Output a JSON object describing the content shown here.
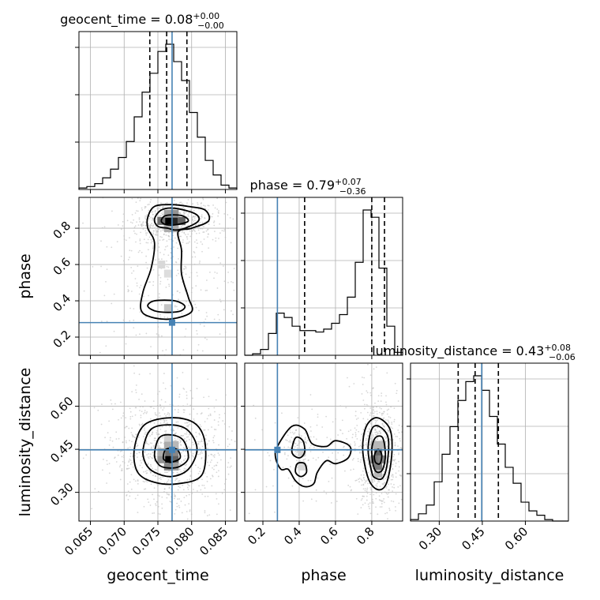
{
  "chart_data": {
    "type": "corner",
    "parameters": [
      "geocent_time",
      "phase",
      "luminosity_distance"
    ],
    "axis_ranges": {
      "geocent_time": [
        0.0633,
        0.0867
      ],
      "phase": [
        0.1,
        0.97
      ],
      "luminosity_distance": [
        0.2,
        0.75
      ]
    },
    "ticks": {
      "geocent_time": [
        "0.065",
        "0.070",
        "0.075",
        "0.080",
        "0.085"
      ],
      "phase_y": [
        "0.2",
        "0.4",
        "0.6",
        "0.8"
      ],
      "phase_x": [
        "0.2",
        "0.4",
        "0.6",
        "0.8"
      ],
      "luminosity_distance_y": [
        "0.30",
        "0.45",
        "0.60"
      ],
      "luminosity_distance_x": [
        "0.30",
        "0.45",
        "0.60"
      ]
    },
    "truths": {
      "geocent_time": 0.0771,
      "phase": 0.28,
      "luminosity_distance": 0.448
    },
    "titles": {
      "geocent_time": {
        "name": "geocent_time",
        "median": "0.08",
        "plus": "+0.00",
        "minus": "−0.00"
      },
      "phase": {
        "name": "phase",
        "median": "0.79",
        "plus": "+0.07",
        "minus": "−0.36"
      },
      "luminosity_distance": {
        "name": "luminosity_distance",
        "median": "0.43",
        "plus": "+0.08",
        "minus": "−0.06"
      }
    },
    "quantiles": {
      "geocent_time": [
        0.0738,
        0.0763,
        0.0793
      ],
      "phase": [
        0.43,
        0.8,
        0.87
      ],
      "luminosity_distance": [
        0.366,
        0.425,
        0.506
      ]
    },
    "histograms": {
      "geocent_time": {
        "edges": [
          0.0633,
          0.06447,
          0.06564,
          0.06681,
          0.06798,
          0.06915,
          0.07032,
          0.07149,
          0.07266,
          0.07383,
          0.075,
          0.07617,
          0.07734,
          0.07851,
          0.07968,
          0.08085,
          0.08202,
          0.08319,
          0.08436,
          0.08553,
          0.0867
        ],
        "counts": [
          0.01,
          0.02,
          0.04,
          0.08,
          0.14,
          0.22,
          0.33,
          0.5,
          0.67,
          0.8,
          0.95,
          1.0,
          0.88,
          0.75,
          0.53,
          0.36,
          0.2,
          0.1,
          0.03,
          0.01
        ]
      },
      "phase": {
        "edges": [
          0.1,
          0.1435,
          0.187,
          0.2305,
          0.274,
          0.3175,
          0.361,
          0.4045,
          0.448,
          0.4915,
          0.535,
          0.5785,
          0.622,
          0.6655,
          0.709,
          0.7525,
          0.796,
          0.8395,
          0.883,
          0.9265,
          0.97
        ],
        "counts": [
          0.0,
          0.01,
          0.04,
          0.15,
          0.29,
          0.26,
          0.2,
          0.17,
          0.17,
          0.16,
          0.18,
          0.22,
          0.28,
          0.4,
          0.64,
          1.0,
          0.95,
          0.6,
          0.2,
          0.02
        ]
      },
      "luminosity_distance": {
        "edges": [
          0.2,
          0.2275,
          0.255,
          0.2825,
          0.31,
          0.3375,
          0.365,
          0.3925,
          0.42,
          0.4475,
          0.475,
          0.5025,
          0.53,
          0.5575,
          0.585,
          0.6125,
          0.64,
          0.6675,
          0.695,
          0.7225,
          0.75
        ],
        "counts": [
          0.01,
          0.05,
          0.11,
          0.27,
          0.46,
          0.65,
          0.83,
          0.96,
          1.0,
          0.9,
          0.72,
          0.53,
          0.37,
          0.26,
          0.13,
          0.07,
          0.04,
          0.01,
          0.0,
          0.0
        ]
      }
    },
    "density_2d": {
      "phase_vs_geocent_time": {
        "contours": [
          [
            [
              0.0735,
              0.86
            ],
            [
              0.0745,
              0.92
            ],
            [
              0.077,
              0.93
            ],
            [
              0.0795,
              0.92
            ],
            [
              0.082,
              0.9
            ],
            [
              0.0825,
              0.84
            ],
            [
              0.08,
              0.8
            ],
            [
              0.078,
              0.78
            ],
            [
              0.0785,
              0.68
            ],
            [
              0.0785,
              0.55
            ],
            [
              0.0795,
              0.42
            ],
            [
              0.08,
              0.34
            ],
            [
              0.077,
              0.3
            ],
            [
              0.074,
              0.31
            ],
            [
              0.0725,
              0.35
            ],
            [
              0.0728,
              0.45
            ],
            [
              0.074,
              0.58
            ],
            [
              0.0745,
              0.72
            ],
            [
              0.0735,
              0.8
            ]
          ],
          [
            [
              0.0745,
              0.85
            ],
            [
              0.0755,
              0.9
            ],
            [
              0.0775,
              0.91
            ],
            [
              0.0805,
              0.88
            ],
            [
              0.081,
              0.84
            ],
            [
              0.079,
              0.8
            ],
            [
              0.0775,
              0.79
            ],
            [
              0.0765,
              0.8
            ],
            [
              0.075,
              0.81
            ]
          ],
          [
            [
              0.0735,
              0.37
            ],
            [
              0.0745,
              0.4
            ],
            [
              0.0775,
              0.4
            ],
            [
              0.079,
              0.37
            ],
            [
              0.078,
              0.34
            ],
            [
              0.075,
              0.34
            ]
          ],
          [
            [
              0.0755,
              0.84
            ],
            [
              0.0762,
              0.87
            ],
            [
              0.0785,
              0.87
            ],
            [
              0.0795,
              0.84
            ],
            [
              0.0778,
              0.82
            ],
            [
              0.0762,
              0.82
            ]
          ]
        ],
        "cells": [
          {
            "x": 0.0765,
            "y": 0.84,
            "level": 1.0
          },
          {
            "x": 0.0775,
            "y": 0.84,
            "level": 0.85
          },
          {
            "x": 0.0755,
            "y": 0.84,
            "level": 0.55
          },
          {
            "x": 0.0785,
            "y": 0.84,
            "level": 0.6
          },
          {
            "x": 0.0765,
            "y": 0.88,
            "level": 0.35
          },
          {
            "x": 0.0775,
            "y": 0.88,
            "level": 0.4
          },
          {
            "x": 0.0765,
            "y": 0.8,
            "level": 0.3
          },
          {
            "x": 0.0775,
            "y": 0.8,
            "level": 0.3
          },
          {
            "x": 0.0765,
            "y": 0.36,
            "level": 0.2
          },
          {
            "x": 0.0755,
            "y": 0.6,
            "level": 0.12
          },
          {
            "x": 0.0765,
            "y": 0.55,
            "level": 0.1
          }
        ]
      },
      "luminosity_distance_vs_geocent_time": {
        "contours": [
          [
            [
              0.0715,
              0.45
            ],
            [
              0.073,
              0.535
            ],
            [
              0.077,
              0.56
            ],
            [
              0.0805,
              0.54
            ],
            [
              0.082,
              0.47
            ],
            [
              0.0815,
              0.36
            ],
            [
              0.078,
              0.33
            ],
            [
              0.0745,
              0.335
            ],
            [
              0.072,
              0.37
            ]
          ],
          [
            [
              0.0728,
              0.45
            ],
            [
              0.074,
              0.52
            ],
            [
              0.077,
              0.535
            ],
            [
              0.0795,
              0.515
            ],
            [
              0.0808,
              0.45
            ],
            [
              0.0795,
              0.38
            ],
            [
              0.077,
              0.355
            ],
            [
              0.0745,
              0.37
            ],
            [
              0.0732,
              0.4
            ]
          ],
          [
            [
              0.0745,
              0.43
            ],
            [
              0.0752,
              0.49
            ],
            [
              0.077,
              0.5
            ],
            [
              0.0788,
              0.48
            ],
            [
              0.0795,
              0.42
            ],
            [
              0.0782,
              0.39
            ],
            [
              0.0765,
              0.385
            ],
            [
              0.0752,
              0.395
            ]
          ],
          [
            [
              0.0758,
              0.42
            ],
            [
              0.0762,
              0.45
            ],
            [
              0.0778,
              0.45
            ],
            [
              0.0783,
              0.42
            ],
            [
              0.077,
              0.405
            ],
            [
              0.0762,
              0.41
            ]
          ]
        ],
        "cells": [
          {
            "x": 0.0765,
            "y": 0.415,
            "level": 1.0
          },
          {
            "x": 0.0775,
            "y": 0.415,
            "level": 0.6
          },
          {
            "x": 0.0765,
            "y": 0.44,
            "level": 0.55
          },
          {
            "x": 0.0775,
            "y": 0.44,
            "level": 0.45
          },
          {
            "x": 0.0755,
            "y": 0.415,
            "level": 0.4
          },
          {
            "x": 0.0765,
            "y": 0.39,
            "level": 0.45
          },
          {
            "x": 0.0775,
            "y": 0.39,
            "level": 0.35
          },
          {
            "x": 0.0765,
            "y": 0.465,
            "level": 0.3
          },
          {
            "x": 0.0775,
            "y": 0.465,
            "level": 0.25
          },
          {
            "x": 0.0765,
            "y": 0.49,
            "level": 0.15
          },
          {
            "x": 0.0755,
            "y": 0.44,
            "level": 0.3
          }
        ]
      },
      "luminosity_distance_vs_phase": {
        "contours": [
          [
            [
              0.78,
              0.35
            ],
            [
              0.75,
              0.45
            ],
            [
              0.77,
              0.53
            ],
            [
              0.83,
              0.56
            ],
            [
              0.9,
              0.52
            ],
            [
              0.91,
              0.43
            ],
            [
              0.88,
              0.33
            ],
            [
              0.83,
              0.31
            ]
          ],
          [
            [
              0.8,
              0.37
            ],
            [
              0.78,
              0.45
            ],
            [
              0.8,
              0.52
            ],
            [
              0.84,
              0.53
            ],
            [
              0.89,
              0.49
            ],
            [
              0.885,
              0.4
            ],
            [
              0.86,
              0.35
            ],
            [
              0.82,
              0.35
            ]
          ],
          [
            [
              0.81,
              0.39
            ],
            [
              0.8,
              0.45
            ],
            [
              0.82,
              0.49
            ],
            [
              0.86,
              0.49
            ],
            [
              0.875,
              0.43
            ],
            [
              0.86,
              0.38
            ],
            [
              0.83,
              0.37
            ]
          ],
          [
            [
              0.82,
              0.405
            ],
            [
              0.815,
              0.43
            ],
            [
              0.835,
              0.45
            ],
            [
              0.855,
              0.43
            ],
            [
              0.845,
              0.4
            ]
          ],
          [
            [
              0.27,
              0.42
            ],
            [
              0.28,
              0.46
            ],
            [
              0.36,
              0.53
            ],
            [
              0.43,
              0.52
            ],
            [
              0.47,
              0.47
            ],
            [
              0.55,
              0.46
            ],
            [
              0.6,
              0.48
            ],
            [
              0.68,
              0.46
            ],
            [
              0.67,
              0.42
            ],
            [
              0.6,
              0.4
            ],
            [
              0.55,
              0.41
            ],
            [
              0.5,
              0.37
            ],
            [
              0.48,
              0.33
            ],
            [
              0.43,
              0.32
            ],
            [
              0.38,
              0.34
            ],
            [
              0.34,
              0.38
            ],
            [
              0.3,
              0.38
            ]
          ],
          [
            [
              0.36,
              0.44
            ],
            [
              0.38,
              0.49
            ],
            [
              0.42,
              0.48
            ],
            [
              0.43,
              0.44
            ],
            [
              0.4,
              0.42
            ]
          ],
          [
            [
              0.38,
              0.37
            ],
            [
              0.39,
              0.4
            ],
            [
              0.43,
              0.4
            ],
            [
              0.44,
              0.37
            ],
            [
              0.41,
              0.355
            ]
          ]
        ],
        "cells": [
          {
            "x": 0.835,
            "y": 0.415,
            "level": 1.0
          },
          {
            "x": 0.835,
            "y": 0.44,
            "level": 0.6
          },
          {
            "x": 0.815,
            "y": 0.415,
            "level": 0.5
          },
          {
            "x": 0.855,
            "y": 0.415,
            "level": 0.45
          },
          {
            "x": 0.835,
            "y": 0.39,
            "level": 0.5
          },
          {
            "x": 0.835,
            "y": 0.465,
            "level": 0.35
          },
          {
            "x": 0.815,
            "y": 0.465,
            "level": 0.25
          },
          {
            "x": 0.855,
            "y": 0.465,
            "level": 0.25
          },
          {
            "x": 0.835,
            "y": 0.365,
            "level": 0.25
          },
          {
            "x": 0.415,
            "y": 0.44,
            "level": 0.15
          },
          {
            "x": 0.415,
            "y": 0.39,
            "level": 0.12
          }
        ]
      }
    },
    "grid": true,
    "colors": {
      "truth": "#4682b4",
      "lines": "#000000",
      "grid": "#b0b0b0",
      "scatter": "#bdbdbd"
    }
  }
}
